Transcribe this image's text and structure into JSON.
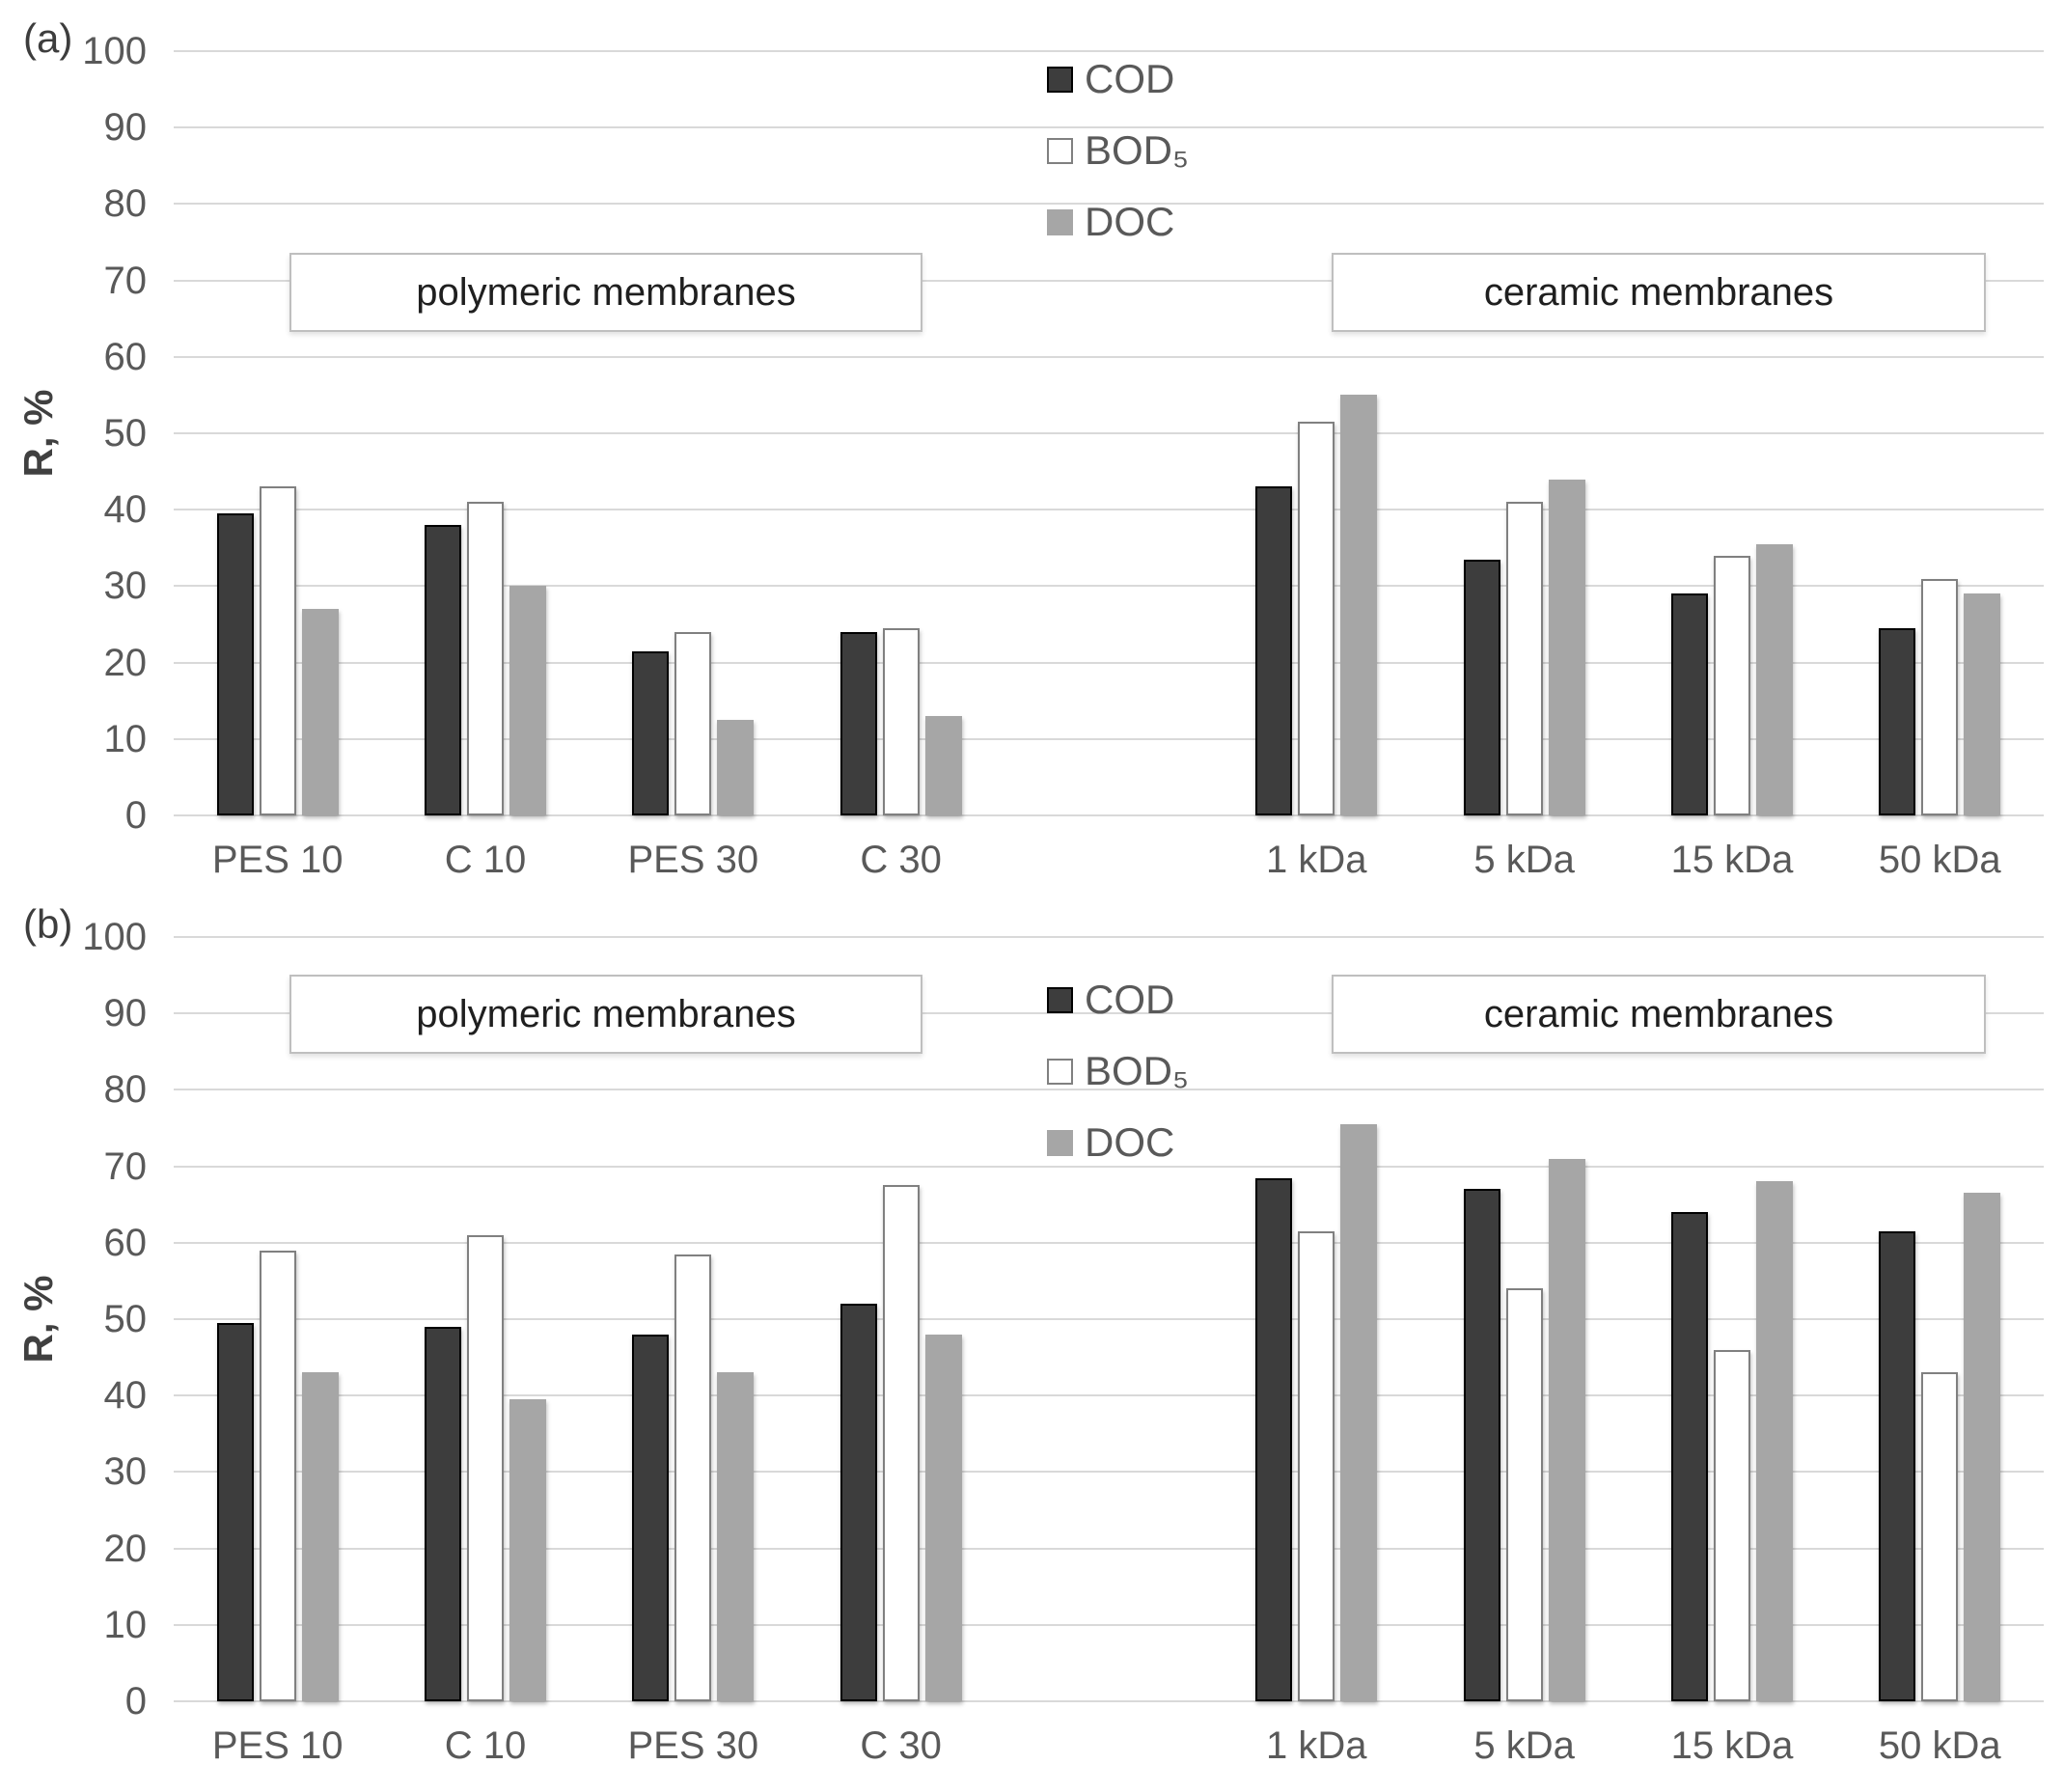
{
  "figure": {
    "panels": [
      {
        "label": "(a)",
        "y_axis_title": "R, %",
        "annotation_left": "polymeric membranes",
        "annotation_right": "ceramic membranes"
      },
      {
        "label": "(b)",
        "y_axis_title": "R, %",
        "annotation_left": "polymeric membranes",
        "annotation_right": "ceramic membranes"
      }
    ]
  },
  "colors": {
    "gridline": "#d9d9d9",
    "axis_text": "#595959",
    "annotation_text": "#1f1f1f",
    "annotation_border": "#bfbfbf",
    "cod_fill": "#3d3d3d",
    "bod_fill": "#ffffff",
    "bod_border": "#808080",
    "doc_fill": "#a6a6a6"
  },
  "chart_data": [
    {
      "type": "bar",
      "panel": "a",
      "title": "",
      "xlabel": "",
      "ylabel": "R, %",
      "ylim": [
        0,
        100
      ],
      "ytick_step": 10,
      "grid": true,
      "legend_position": "top-center-vertical",
      "categories": [
        "PES 10",
        "C 10",
        "PES 30",
        "C 30",
        "1 kDa",
        "5 kDa",
        "15 kDa",
        "50 kDa"
      ],
      "category_groups": {
        "polymeric membranes": [
          "PES 10",
          "C 10",
          "PES 30",
          "C 30"
        ],
        "ceramic membranes": [
          "1 kDa",
          "5 kDa",
          "15 kDa",
          "50 kDa"
        ]
      },
      "slot_layout": [
        0,
        1,
        2,
        3,
        null,
        4,
        5,
        6,
        7
      ],
      "series": [
        {
          "name": "COD",
          "color": "#3d3d3d",
          "border_color": "#000000",
          "values": [
            39.5,
            38,
            21.5,
            24,
            43,
            33.5,
            29,
            24.5
          ]
        },
        {
          "name": "BOD₅",
          "color": "#ffffff",
          "border_color": "#808080",
          "values": [
            43,
            41,
            24,
            24.5,
            51.5,
            41,
            34,
            31
          ]
        },
        {
          "name": "DOC",
          "color": "#a6a6a6",
          "border_color": "",
          "values": [
            27,
            30,
            12.5,
            13,
            55,
            44,
            35.5,
            29
          ]
        }
      ]
    },
    {
      "type": "bar",
      "panel": "b",
      "title": "",
      "xlabel": "",
      "ylabel": "R, %",
      "ylim": [
        0,
        100
      ],
      "ytick_step": 10,
      "grid": true,
      "legend_position": "top-center-vertical",
      "categories": [
        "PES 10",
        "C 10",
        "PES 30",
        "C 30",
        "1 kDa",
        "5 kDa",
        "15 kDa",
        "50 kDa"
      ],
      "category_groups": {
        "polymeric membranes": [
          "PES 10",
          "C 10",
          "PES 30",
          "C 30"
        ],
        "ceramic membranes": [
          "1 kDa",
          "5 kDa",
          "15 kDa",
          "50 kDa"
        ]
      },
      "slot_layout": [
        0,
        1,
        2,
        3,
        null,
        4,
        5,
        6,
        7
      ],
      "series": [
        {
          "name": "COD",
          "color": "#3d3d3d",
          "border_color": "#000000",
          "values": [
            49.5,
            49,
            48,
            52,
            68.5,
            67,
            64,
            61.5
          ]
        },
        {
          "name": "BOD₅",
          "color": "#ffffff",
          "border_color": "#808080",
          "values": [
            59,
            61,
            58.5,
            67.5,
            61.5,
            54,
            46,
            43
          ]
        },
        {
          "name": "DOC",
          "color": "#a6a6a6",
          "border_color": "",
          "values": [
            43,
            39.5,
            43,
            48,
            75.5,
            71,
            68,
            66.5
          ]
        }
      ]
    }
  ]
}
